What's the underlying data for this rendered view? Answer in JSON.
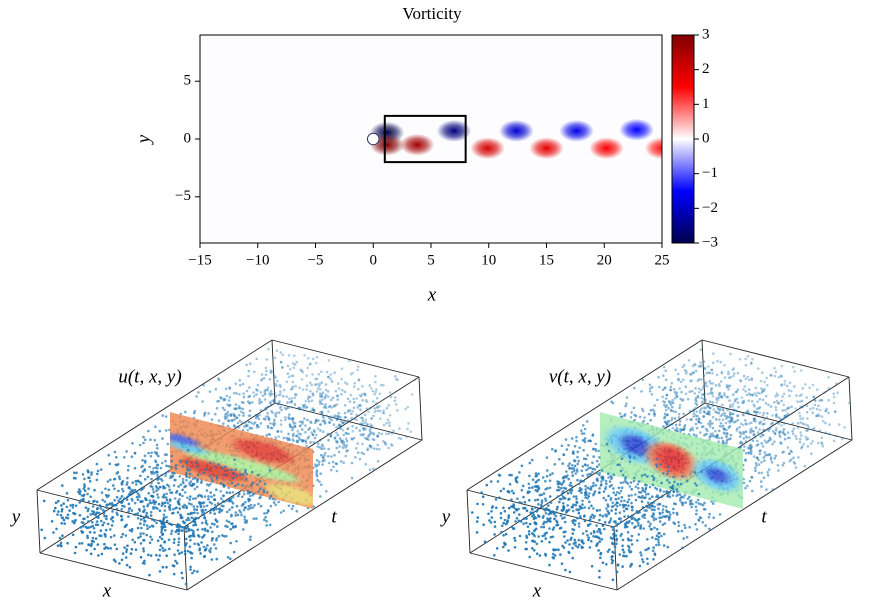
{
  "chart_data": [
    {
      "type": "heatmap",
      "title": "Vorticity",
      "xlabel": "x",
      "ylabel": "y",
      "xlim": [
        -15,
        25
      ],
      "xticks": [
        {
          "value": -15,
          "label": "−15"
        },
        {
          "value": -10,
          "label": "−10"
        },
        {
          "value": -5,
          "label": "−5"
        },
        0,
        5,
        10,
        15,
        20,
        25
      ],
      "ylim": [
        -9,
        9
      ],
      "yticks": [
        {
          "value": -5,
          "label": "−5"
        },
        0,
        5
      ],
      "clim": [
        -3,
        3
      ],
      "cticks": [
        {
          "value": -3,
          "label": "−3"
        },
        {
          "value": -2,
          "label": "−2"
        },
        {
          "value": -1,
          "label": "−1"
        },
        0,
        1,
        2,
        3
      ],
      "colormap": [
        "#00004d",
        "#0000ff",
        "#ffffff",
        "#ff0000",
        "#800000"
      ],
      "cylinder": {
        "x": 0,
        "y": 0,
        "radius": 0.5
      },
      "box": {
        "x": [
          1,
          8
        ],
        "y": [
          -2,
          2
        ]
      },
      "vortices": [
        {
          "x": 1.2,
          "y": 0.55,
          "value": -3
        },
        {
          "x": 1.2,
          "y": -0.5,
          "value": 3
        },
        {
          "x": 3.8,
          "y": -0.5,
          "value": 2.6
        },
        {
          "x": 7.0,
          "y": 0.7,
          "value": -2.6
        },
        {
          "x": 9.9,
          "y": -0.8,
          "value": 2
        },
        {
          "x": 12.4,
          "y": 0.7,
          "value": -1.9
        },
        {
          "x": 15.0,
          "y": -0.8,
          "value": 1.8
        },
        {
          "x": 17.6,
          "y": 0.7,
          "value": -1.7
        },
        {
          "x": 20.2,
          "y": -0.8,
          "value": 1.6
        },
        {
          "x": 22.8,
          "y": 0.8,
          "value": -1.5
        },
        {
          "x": 25.0,
          "y": -0.8,
          "value": 1.4
        }
      ]
    },
    {
      "type": "scatter3d",
      "title": "u(t, x, y)",
      "xlabel": "x",
      "ylabel": "y",
      "zlabel": "t",
      "point_color": "#1f77b4",
      "field": "u"
    },
    {
      "type": "scatter3d",
      "title": "v(t, x, y)",
      "xlabel": "x",
      "ylabel": "y",
      "zlabel": "t",
      "point_color": "#1f77b4",
      "field": "v"
    }
  ]
}
